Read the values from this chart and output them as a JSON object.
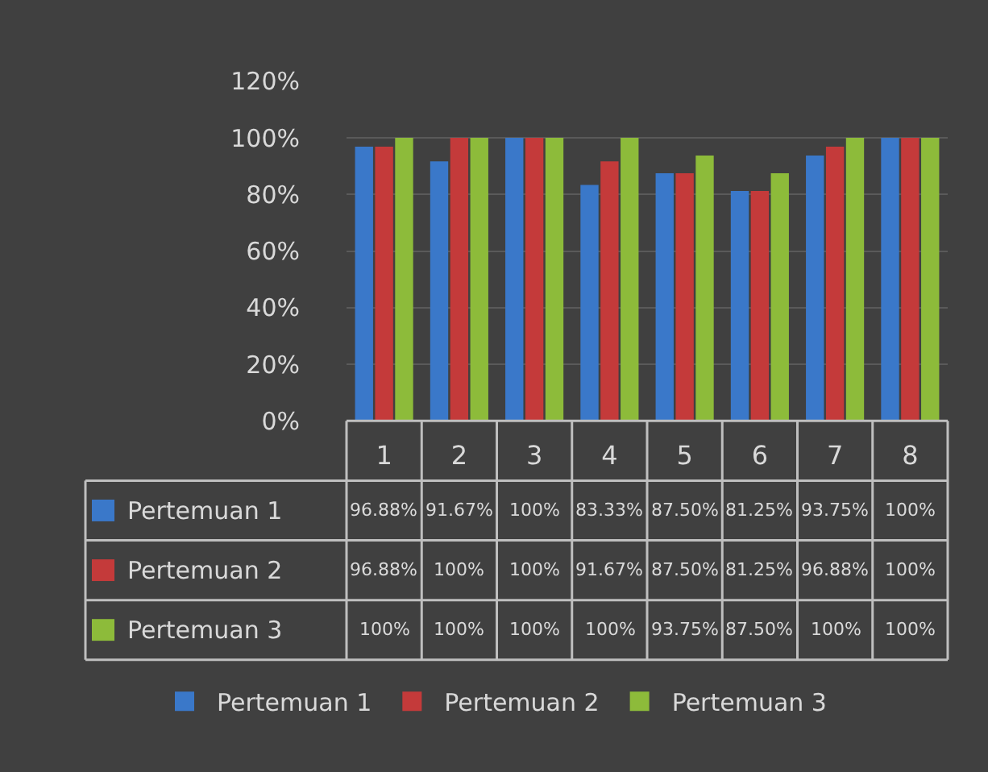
{
  "chart_data": {
    "type": "bar",
    "categories": [
      "1",
      "2",
      "3",
      "4",
      "5",
      "6",
      "7",
      "8"
    ],
    "series": [
      {
        "name": "Pertemuan 1",
        "color": "#3a78c9",
        "values": [
          96.88,
          91.67,
          100,
          83.33,
          87.5,
          81.25,
          93.75,
          100
        ],
        "value_labels": [
          "96.88%",
          "91.67%",
          "100%",
          "83.33%",
          "87.50%",
          "81.25%",
          "93.75%",
          "100%"
        ]
      },
      {
        "name": "Pertemuan 2",
        "color": "#c43a3a",
        "values": [
          96.88,
          100,
          100,
          91.67,
          87.5,
          81.25,
          96.88,
          100
        ],
        "value_labels": [
          "96.88%",
          "100%",
          "100%",
          "91.67%",
          "87.50%",
          "81.25%",
          "96.88%",
          "100%"
        ]
      },
      {
        "name": "Pertemuan 3",
        "color": "#8dbb3a",
        "values": [
          100,
          100,
          100,
          100,
          93.75,
          87.5,
          100,
          100
        ],
        "value_labels": [
          "100%",
          "100%",
          "100%",
          "100%",
          "93.75%",
          "87.50%",
          "100%",
          "100%"
        ]
      }
    ],
    "ylim": [
      0,
      120
    ],
    "yticks": [
      {
        "value": 0,
        "label": "0%"
      },
      {
        "value": 20,
        "label": "20%"
      },
      {
        "value": 40,
        "label": "40%"
      },
      {
        "value": 60,
        "label": "60%"
      },
      {
        "value": 80,
        "label": "80%"
      },
      {
        "value": 100,
        "label": "100%"
      },
      {
        "value": 120,
        "label": "120%"
      }
    ],
    "grid": "y",
    "legend": "bottom"
  }
}
